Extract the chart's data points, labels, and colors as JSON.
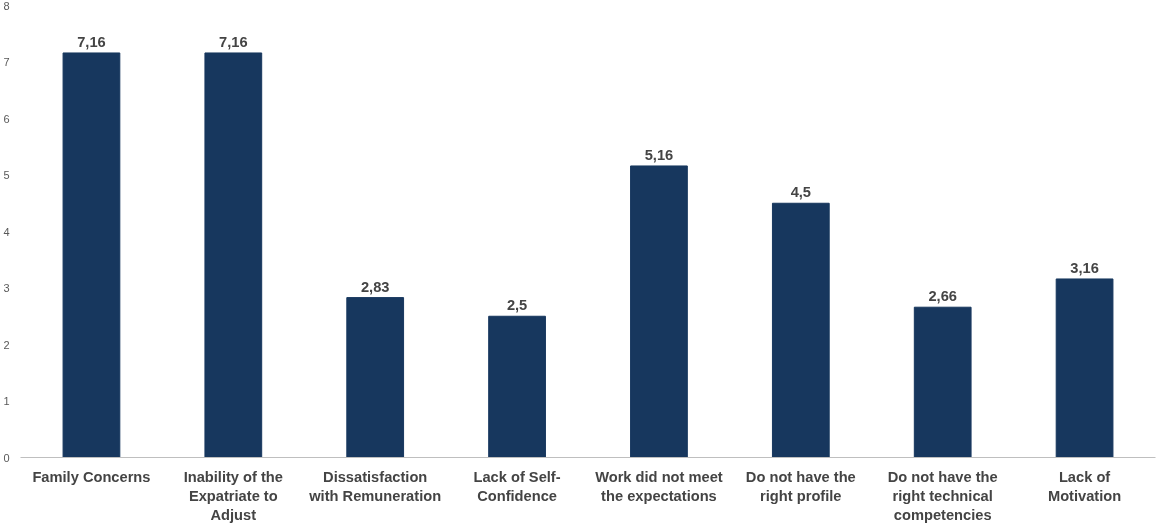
{
  "chart_data": {
    "type": "bar",
    "categories": [
      "Family Concerns",
      "Inability of the Expatriate to Adjust",
      "Dissatisfaction with Remuneration",
      "Lack of Self-Confidence",
      "Work did not meet the expectations",
      "Do not have the right profile",
      "Do not have the right technical competencies",
      "Lack of Motivation"
    ],
    "values": [
      7.16,
      7.16,
      2.83,
      2.5,
      5.16,
      4.5,
      2.66,
      3.16
    ],
    "value_labels": [
      "7,16",
      "7,16",
      "2,83",
      "2,5",
      "5,16",
      "4,5",
      "2,66",
      "3,16"
    ],
    "color": "#17375e",
    "ylim": [
      0,
      8
    ],
    "yticks": [
      0,
      1,
      2,
      3,
      4,
      5,
      6,
      7,
      8
    ],
    "grid": false
  }
}
